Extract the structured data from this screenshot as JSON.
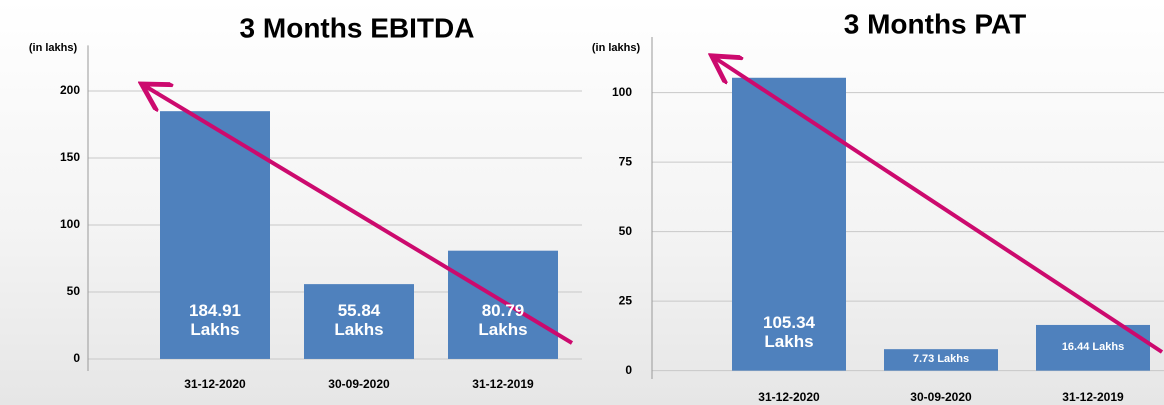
{
  "chart_data": [
    {
      "type": "bar",
      "title": "3 Months EBITDA",
      "y_label": "(in lakhs)",
      "categories": [
        "31-12-2020",
        "30-09-2020",
        "31-12-2019"
      ],
      "values": [
        184.91,
        55.84,
        80.79
      ],
      "value_labels": [
        "184.91 Lakhs",
        "55.84 Lakhs",
        "80.79 Lakhs"
      ],
      "color": "#4f81bd",
      "ylim": [
        -9,
        234
      ],
      "yticks": [
        0,
        50,
        100,
        150,
        200
      ],
      "grid": true
    },
    {
      "type": "bar",
      "title": "3 Months PAT",
      "y_label": "(in lakhs)",
      "categories": [
        "31-12-2020",
        "30-09-2020",
        "31-12-2019"
      ],
      "values": [
        105.34,
        7.73,
        16.44
      ],
      "value_labels": [
        "105.34 Lakhs",
        "7.73 Lakhs",
        "16.44 Lakhs"
      ],
      "color": "#4f81bd",
      "ylim": [
        -3,
        120
      ],
      "yticks": [
        0,
        25,
        50,
        75,
        100
      ],
      "grid": true
    }
  ]
}
